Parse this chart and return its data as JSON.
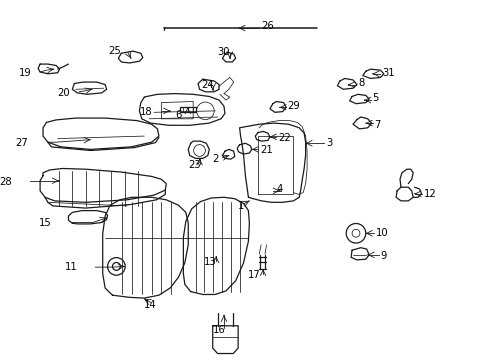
{
  "background_color": "#ffffff",
  "line_color": "#1a1a1a",
  "text_color": "#000000",
  "fig_width": 4.89,
  "fig_height": 3.6,
  "dpi": 100,
  "labels": {
    "1": [
      0.5,
      0.558,
      "←",
      "right"
    ],
    "2": [
      0.438,
      0.425,
      "←",
      "right"
    ],
    "3": [
      0.678,
      0.388,
      "←",
      "right"
    ],
    "4": [
      0.545,
      0.53,
      "←",
      "right"
    ],
    "5": [
      0.748,
      0.268,
      "←",
      "right"
    ],
    "6": [
      0.378,
      0.295,
      "↓",
      "center"
    ],
    "7": [
      0.76,
      0.32,
      "←",
      "right"
    ],
    "8": [
      0.72,
      0.218,
      "←",
      "right"
    ],
    "9": [
      0.79,
      0.68,
      "←",
      "right"
    ],
    "10": [
      0.76,
      0.618,
      "←",
      "right"
    ],
    "11": [
      0.168,
      0.728,
      "→",
      "left"
    ],
    "12": [
      0.862,
      0.488,
      "←",
      "right"
    ],
    "13": [
      0.468,
      0.71,
      "↓",
      "center"
    ],
    "14": [
      0.318,
      0.808,
      "↓",
      "center"
    ],
    "15": [
      0.112,
      0.618,
      "→",
      "left"
    ],
    "16": [
      0.428,
      0.908,
      "→",
      "left"
    ],
    "17": [
      0.528,
      0.748,
      "↓",
      "center"
    ],
    "18": [
      0.318,
      0.28,
      "→",
      "left"
    ],
    "19": [
      0.082,
      0.168,
      "→",
      "left"
    ],
    "20": [
      0.148,
      0.238,
      "→",
      "left"
    ],
    "21": [
      0.498,
      0.398,
      "→",
      "left"
    ],
    "22": [
      0.538,
      0.358,
      "→",
      "left"
    ],
    "23": [
      0.408,
      0.438,
      "↓",
      "center"
    ],
    "24": [
      0.428,
      0.148,
      "↓",
      "center"
    ],
    "25": [
      0.252,
      0.138,
      "→",
      "left"
    ],
    "26": [
      0.548,
      0.068,
      "←",
      "right"
    ],
    "27": [
      0.082,
      0.328,
      "→",
      "left"
    ],
    "28": [
      0.048,
      0.468,
      "→",
      "left"
    ],
    "29": [
      0.598,
      0.278,
      "←",
      "right"
    ],
    "30": [
      0.468,
      0.138,
      "↓",
      "center"
    ],
    "31": [
      0.778,
      0.188,
      "←",
      "right"
    ]
  }
}
